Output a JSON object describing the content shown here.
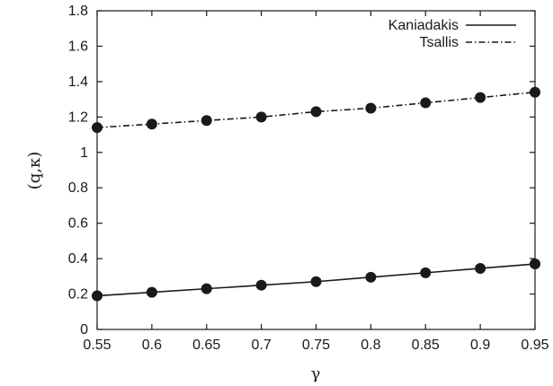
{
  "chart_data": {
    "type": "line",
    "xlabel": "γ",
    "ylabel": "(q,κ)",
    "xlim": [
      0.55,
      0.95
    ],
    "ylim": [
      0,
      1.8
    ],
    "x_ticks": [
      0.55,
      0.6,
      0.65,
      0.7,
      0.75,
      0.8,
      0.85,
      0.9,
      0.95
    ],
    "y_ticks": [
      0,
      0.2,
      0.4,
      0.6,
      0.8,
      1,
      1.2,
      1.4,
      1.6,
      1.8
    ],
    "x": [
      0.55,
      0.6,
      0.65,
      0.7,
      0.75,
      0.8,
      0.85,
      0.9,
      0.95
    ],
    "legend_position": "top-right",
    "grid": false,
    "series": [
      {
        "name": "Kaniadakis",
        "line_style": "solid",
        "values": [
          0.19,
          0.21,
          0.23,
          0.25,
          0.27,
          0.295,
          0.32,
          0.345,
          0.37
        ]
      },
      {
        "name": "Tsallis",
        "line_style": "dash-dot",
        "values": [
          1.14,
          1.16,
          1.18,
          1.2,
          1.23,
          1.25,
          1.28,
          1.31,
          1.34
        ]
      }
    ]
  }
}
